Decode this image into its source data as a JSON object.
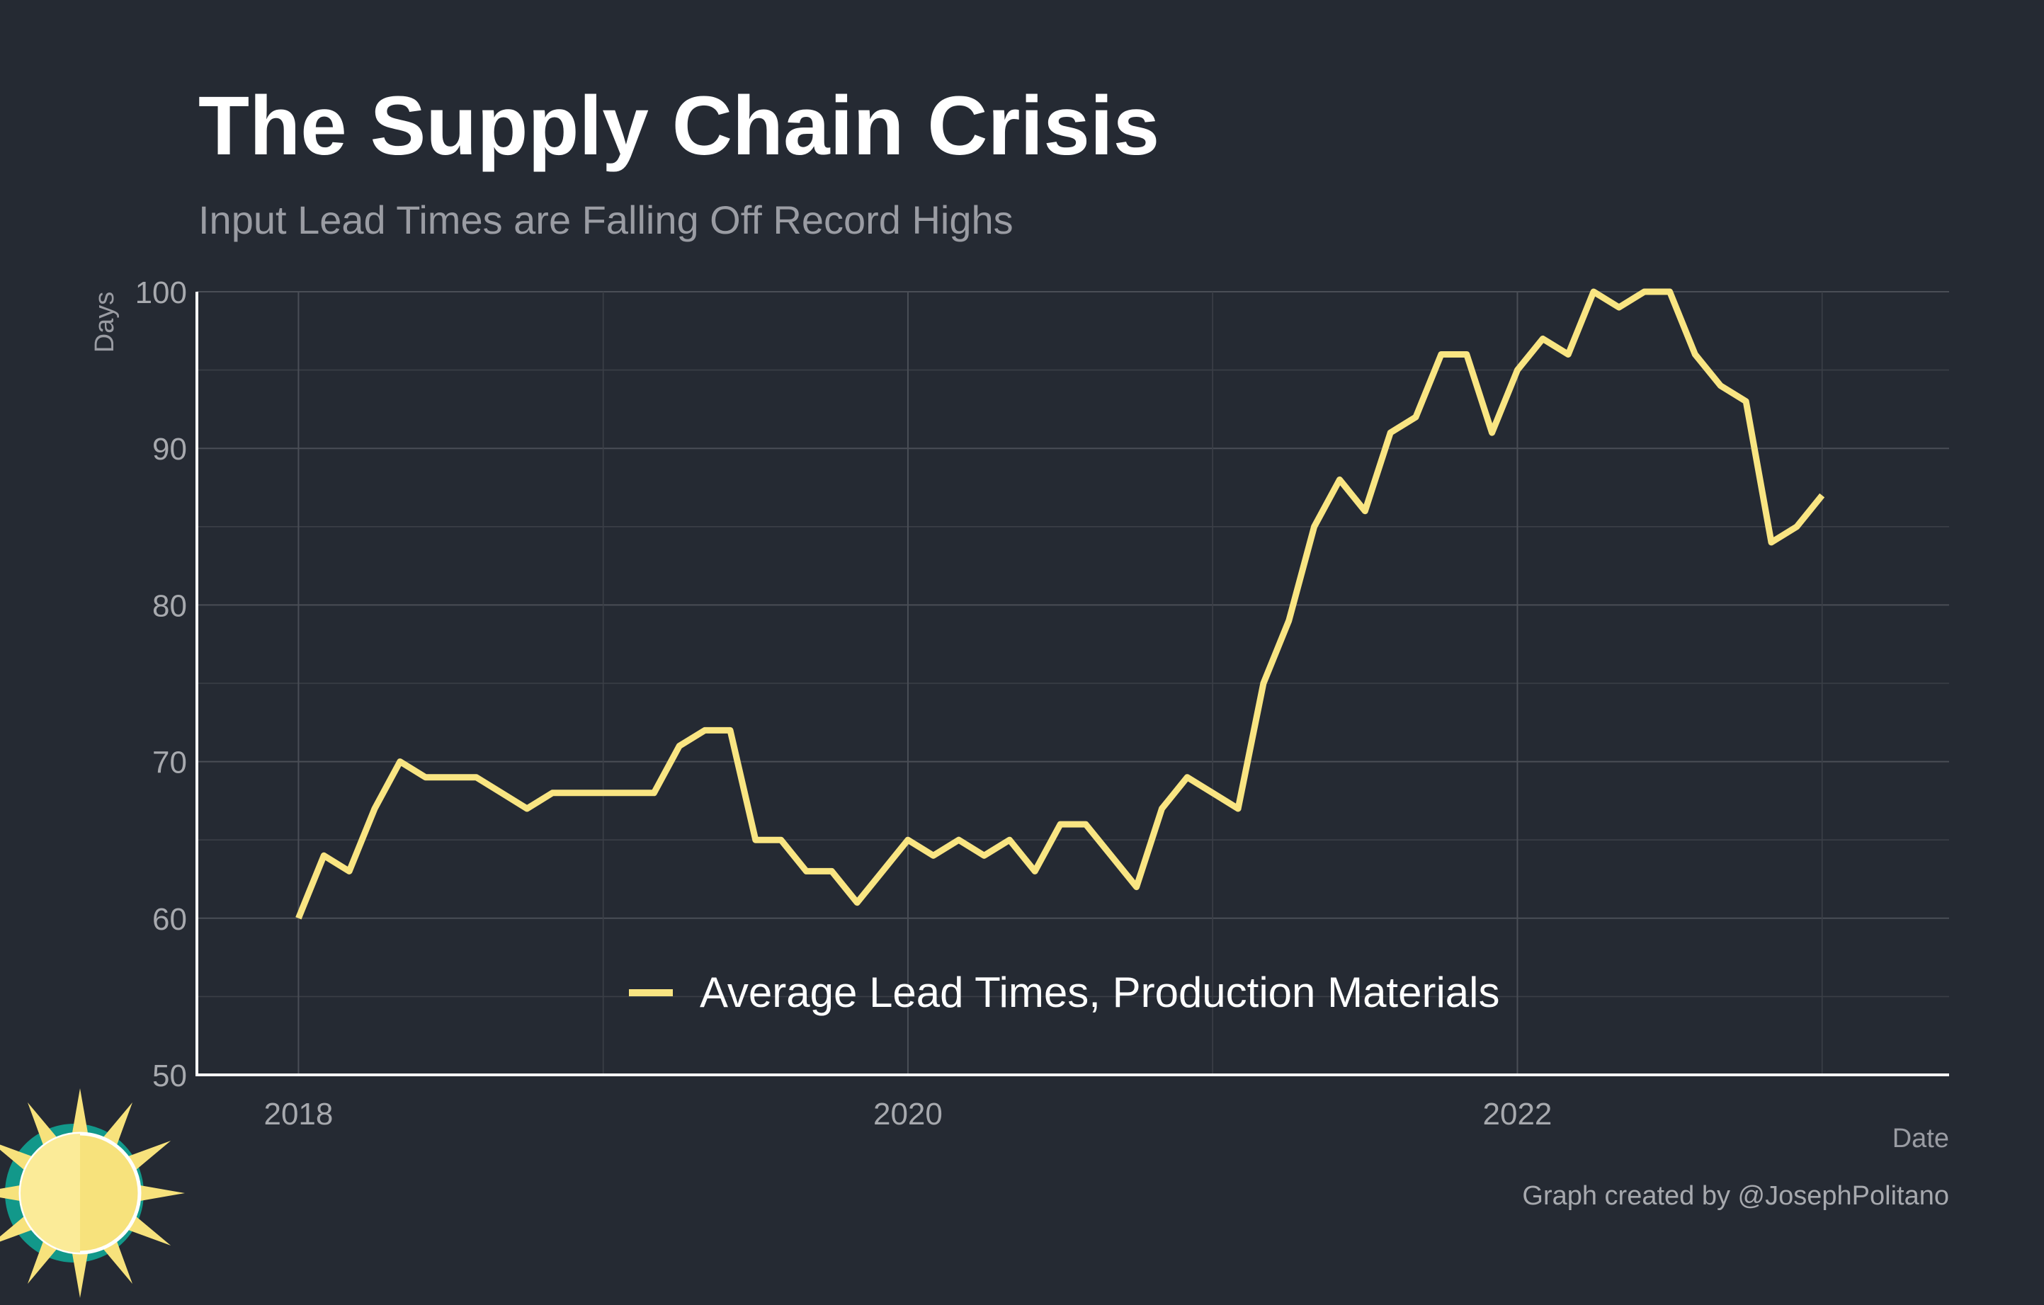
{
  "title": "The Supply Chain Crisis",
  "subtitle": "Input Lead Times are Falling Off Record Highs",
  "caption": "Graph created by @JosephPolitano",
  "colors": {
    "background": "#252a33",
    "line": "#f9e582",
    "logo_sun": "#f7e27c",
    "logo_ring": "#12988a"
  },
  "icons": [
    "sun-logo-icon"
  ],
  "chart_data": {
    "type": "line",
    "xlabel": "Date",
    "ylabel": "Days",
    "ylim": [
      50,
      100
    ],
    "y_ticks": [
      50,
      60,
      70,
      80,
      90,
      100
    ],
    "x_ticks": [
      "2018",
      "2020",
      "2022"
    ],
    "x_range": [
      "2017-09",
      "2023-06"
    ],
    "grid": true,
    "legend_position": "bottom-center",
    "series": [
      {
        "name": "Average Lead Times, Production Materials",
        "x": [
          "2018-01",
          "2018-02",
          "2018-03",
          "2018-04",
          "2018-05",
          "2018-06",
          "2018-07",
          "2018-08",
          "2018-09",
          "2018-10",
          "2018-11",
          "2018-12",
          "2019-01",
          "2019-02",
          "2019-03",
          "2019-04",
          "2019-05",
          "2019-06",
          "2019-07",
          "2019-08",
          "2019-09",
          "2019-10",
          "2019-11",
          "2019-12",
          "2020-01",
          "2020-02",
          "2020-03",
          "2020-04",
          "2020-05",
          "2020-06",
          "2020-07",
          "2020-08",
          "2020-09",
          "2020-10",
          "2020-11",
          "2020-12",
          "2021-01",
          "2021-02",
          "2021-03",
          "2021-04",
          "2021-05",
          "2021-06",
          "2021-07",
          "2021-08",
          "2021-09",
          "2021-10",
          "2021-11",
          "2021-12",
          "2022-01",
          "2022-02",
          "2022-03",
          "2022-04",
          "2022-05",
          "2022-06",
          "2022-07",
          "2022-08",
          "2022-09",
          "2022-10",
          "2022-11",
          "2022-12",
          "2023-01"
        ],
        "values": [
          60,
          64,
          63,
          67,
          70,
          69,
          69,
          69,
          68,
          67,
          68,
          68,
          68,
          68,
          68,
          71,
          72,
          72,
          65,
          65,
          63,
          63,
          61,
          63,
          65,
          64,
          65,
          64,
          65,
          63,
          66,
          66,
          64,
          62,
          67,
          69,
          68,
          67,
          75,
          79,
          85,
          88,
          86,
          91,
          92,
          96,
          96,
          91,
          95,
          97,
          96,
          100,
          99,
          100,
          100,
          96,
          94,
          93,
          84,
          85,
          87
        ]
      }
    ]
  }
}
